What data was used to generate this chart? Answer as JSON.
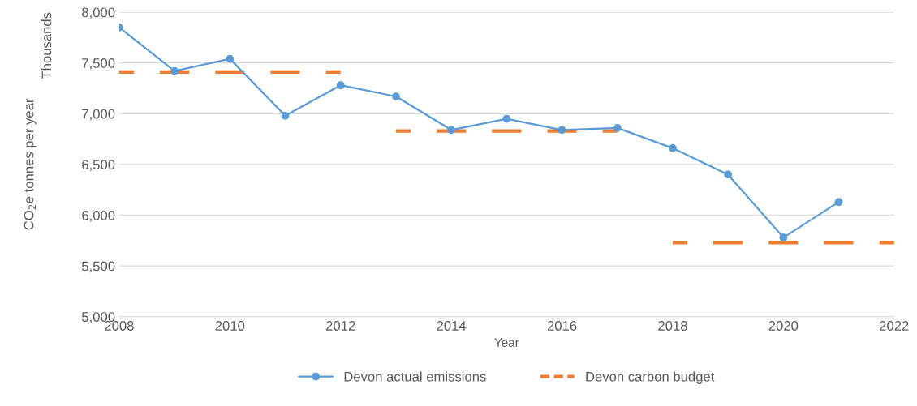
{
  "chart_data": {
    "type": "line",
    "xlabel": "Year",
    "ylabel": "CO$_{2}$e tonnes per year",
    "annotations": [
      "Thousands"
    ],
    "xlim": [
      2008,
      2022
    ],
    "xticks": [
      2008,
      2010,
      2012,
      2014,
      2016,
      2018,
      2020,
      2022
    ],
    "ylim": [
      5000,
      8000
    ],
    "yticks": [
      {
        "value": 5000,
        "label": "5,000"
      },
      {
        "value": 5500,
        "label": "5,500"
      },
      {
        "value": 6000,
        "label": "6,000"
      },
      {
        "value": 6500,
        "label": "6,500"
      },
      {
        "value": 7000,
        "label": "7,000"
      },
      {
        "value": 7500,
        "label": "7,500"
      },
      {
        "value": 8000,
        "label": "8,000"
      }
    ],
    "grid": "y",
    "legend": "bottom",
    "series": [
      {
        "name": "Devon actual emissions",
        "color": "#5b9bd5",
        "marker": "circle",
        "x": [
          2008,
          2009,
          2010,
          2011,
          2012,
          2013,
          2014,
          2015,
          2016,
          2017,
          2018,
          2019,
          2020,
          2021
        ],
        "values": [
          7850,
          7420,
          7540,
          6980,
          7280,
          7170,
          6840,
          6950,
          6840,
          6860,
          6660,
          6400,
          5780,
          6130
        ]
      },
      {
        "name": "Devon carbon budget",
        "line_style": "dashed",
        "color": "#ed7d31",
        "x": [
          2008,
          2009,
          2010,
          2011,
          2012,
          2013,
          2014,
          2015,
          2016,
          2017,
          2018,
          2019,
          2020,
          2021,
          2022
        ],
        "values": [
          7410,
          7410,
          7410,
          7410,
          7410,
          6830,
          6830,
          6830,
          6830,
          6830,
          5730,
          5730,
          5730,
          5730,
          5730
        ]
      }
    ]
  }
}
